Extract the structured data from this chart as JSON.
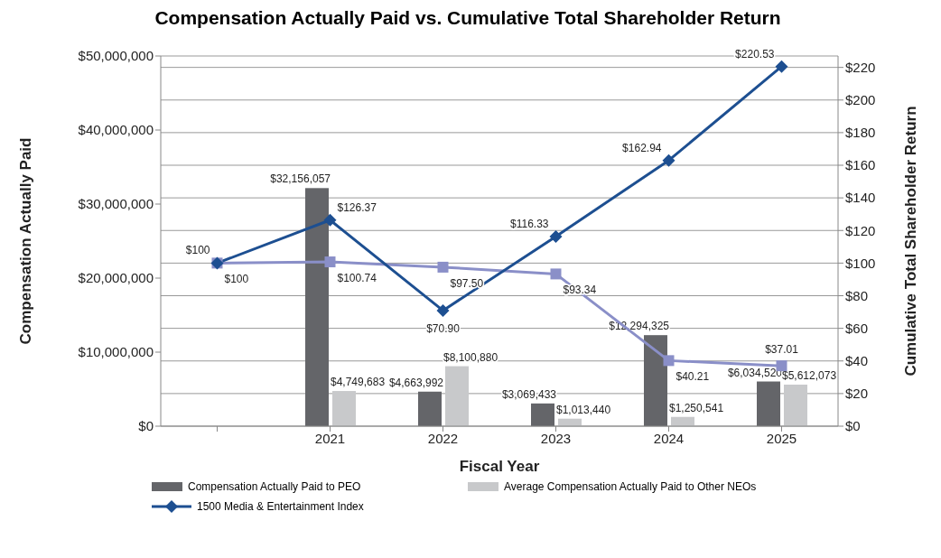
{
  "chart_data": {
    "type": "bar",
    "title": "Compensation Actually Paid vs. Cumulative Total Shareholder Return",
    "xlabel": "Fiscal Year",
    "ylabel": "Compensation Actually Paid",
    "y2label": "Cumulative Total Shareholder Return",
    "categories": [
      null,
      "2021",
      "2022",
      "2023",
      "2024",
      "2025"
    ],
    "series": [
      {
        "name": "Compensation Actually Paid to PEO",
        "type": "bar",
        "color": "#646569",
        "values": [
          null,
          32156057,
          4663992,
          3069433,
          12294325,
          6034520
        ],
        "value_labels": [
          null,
          "$32,156,057",
          "$4,663,992",
          "$3,069,433",
          "$12,294,325",
          "$6,034,520"
        ]
      },
      {
        "name": "Average Compensation Actually Paid to Other NEOs",
        "type": "bar",
        "color": "#c8c9cb",
        "values": [
          null,
          4749683,
          8100880,
          1013440,
          1250541,
          5612073
        ],
        "value_labels": [
          null,
          "$4,749,683",
          "$8,100,880",
          "$1,013,440",
          "$1,250,541",
          "$5,612,073"
        ]
      },
      {
        "type": "line",
        "axis": "y2",
        "marker": "square",
        "color": "#8a8fc8",
        "values": [
          100,
          100.74,
          97.5,
          93.34,
          40.21,
          37.01
        ],
        "value_labels": [
          "$100",
          "$100.74",
          "$97.50",
          "$93.34",
          "$40.21",
          "$37.01"
        ]
      },
      {
        "name": "1500 Media & Entertainment Index",
        "type": "line",
        "axis": "y2",
        "marker": "diamond",
        "color": "#1d4f91",
        "values": [
          100,
          126.37,
          70.9,
          116.33,
          162.94,
          220.53
        ],
        "value_labels": [
          "$100",
          "$126.37",
          "$70.90",
          "$116.33",
          "$162.94",
          "$220.53"
        ]
      }
    ],
    "ylim": [
      0,
      50000000
    ],
    "yticks": [
      {
        "value": 0,
        "label": "$0"
      },
      {
        "value": 10000000,
        "label": "$10,000,000"
      },
      {
        "value": 20000000,
        "label": "$20,000,000"
      },
      {
        "value": 30000000,
        "label": "$30,000,000"
      },
      {
        "value": 40000000,
        "label": "$40,000,000"
      },
      {
        "value": 50000000,
        "label": "$50,000,000"
      }
    ],
    "y2lim": [
      0,
      227
    ],
    "y2ticks": [
      {
        "value": 0,
        "label": "$0"
      },
      {
        "value": 20,
        "label": "$20"
      },
      {
        "value": 40,
        "label": "$40"
      },
      {
        "value": 60,
        "label": "$60"
      },
      {
        "value": 80,
        "label": "$80"
      },
      {
        "value": 100,
        "label": "$100"
      },
      {
        "value": 120,
        "label": "$120"
      },
      {
        "value": 140,
        "label": "$140"
      },
      {
        "value": 160,
        "label": "$160"
      },
      {
        "value": 180,
        "label": "$180"
      },
      {
        "value": 200,
        "label": "$200"
      },
      {
        "value": 220,
        "label": "$220"
      }
    ],
    "grid": "y2",
    "legend": "bottom"
  }
}
